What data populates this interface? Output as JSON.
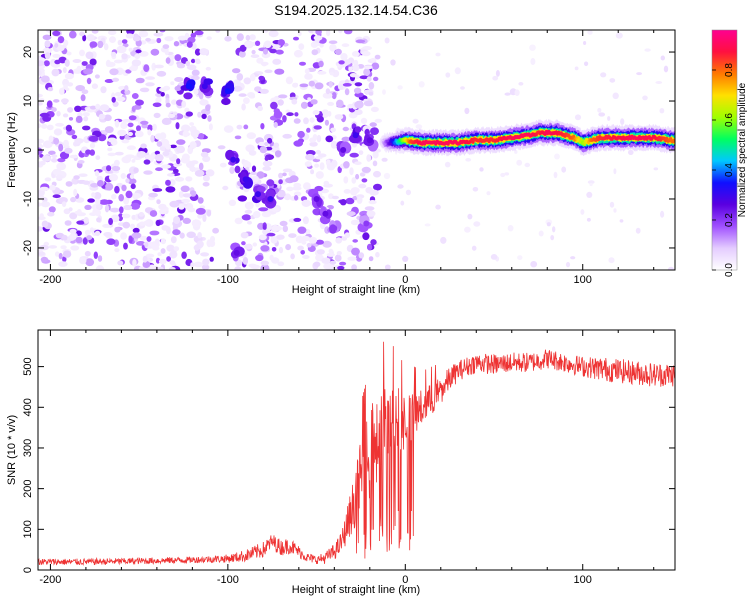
{
  "figure": {
    "title": "S194.2025.132.14.54.C36"
  },
  "chart_data": [
    {
      "type": "heatmap",
      "xlabel": "Height of straight line (km)",
      "ylabel": "Frequency (Hz)",
      "xlim": [
        -207,
        152
      ],
      "ylim": [
        -24.5,
        24.5
      ],
      "xticks": [
        -200,
        -100,
        0,
        100
      ],
      "yticks": [
        -20,
        -10,
        0,
        10,
        20
      ],
      "colorbar": {
        "label": "Normalized spectral amplitude",
        "ticks": [
          0.0,
          0.2,
          0.4,
          0.6,
          0.8
        ],
        "range": [
          0,
          0.96
        ],
        "colors": [
          "#ffffff",
          "#e4ccff",
          "#a050ff",
          "#5a00e0",
          "#1010ff",
          "#00c8ff",
          "#00ff60",
          "#a0ff00",
          "#ffe000",
          "#ff7800",
          "#ff1040",
          "#ff0090"
        ]
      },
      "ridge_x": [
        -10,
        0,
        10,
        20,
        30,
        40,
        50,
        60,
        70,
        75,
        80,
        85,
        90,
        95,
        100,
        105,
        110,
        120,
        130,
        140,
        150
      ],
      "ridge_y": [
        1.5,
        2,
        1.5,
        1.5,
        1.5,
        2,
        2,
        2.5,
        3,
        3.5,
        3.5,
        3.5,
        3,
        2.5,
        1.5,
        2,
        2.5,
        2.5,
        2.5,
        2.5,
        2
      ],
      "ridge_amplitude": [
        0.75,
        0.8,
        0.9,
        0.92,
        0.9,
        0.85,
        0.85,
        0.9,
        0.92,
        0.85,
        0.9,
        0.88,
        0.85,
        0.8,
        0.6,
        0.8,
        0.85,
        0.88,
        0.9,
        0.88,
        0.8
      ],
      "features": [
        {
          "x": -122,
          "y": 13,
          "amp": 0.35
        },
        {
          "x": -113,
          "y": 13,
          "amp": 0.3
        },
        {
          "x": -100,
          "y": 12,
          "amp": 0.35
        },
        {
          "x": -97,
          "y": -2,
          "amp": 0.3
        },
        {
          "x": -95,
          "y": -21,
          "amp": 0.25
        },
        {
          "x": -90,
          "y": -6,
          "amp": 0.3
        },
        {
          "x": -83,
          "y": -9,
          "amp": 0.3
        },
        {
          "x": -76,
          "y": -10,
          "amp": 0.3
        },
        {
          "x": -50,
          "y": -10,
          "amp": 0.25
        },
        {
          "x": -45,
          "y": -13,
          "amp": 0.25
        },
        {
          "x": -40,
          "y": -16,
          "amp": 0.2
        },
        {
          "x": -35,
          "y": 0,
          "amp": 0.25
        },
        {
          "x": -28,
          "y": 3,
          "amp": 0.3
        },
        {
          "x": -22,
          "y": -15,
          "amp": 0.2
        },
        {
          "x": -20,
          "y": 2,
          "amp": 0.25
        }
      ]
    },
    {
      "type": "line",
      "xlabel": "Height of straight line (km)",
      "ylabel": "SNR (10 * v/v)",
      "xlim": [
        -207,
        152
      ],
      "ylim": [
        0,
        590
      ],
      "xticks": [
        -200,
        -100,
        0,
        100
      ],
      "yticks": [
        0,
        100,
        200,
        300,
        400,
        500
      ],
      "series": [
        {
          "color": "#ee3333",
          "x": [
            -207,
            -180,
            -150,
            -120,
            -100,
            -90,
            -80,
            -75,
            -70,
            -65,
            -60,
            -55,
            -50,
            -45,
            -40,
            -37,
            -35,
            -30,
            -25,
            -20,
            -18,
            -15,
            -10,
            -5,
            0,
            5,
            10,
            15,
            20,
            25,
            30,
            35,
            40,
            50,
            60,
            70,
            80,
            90,
            100,
            110,
            120,
            130,
            140,
            152
          ],
          "y": [
            20,
            20,
            22,
            25,
            28,
            35,
            50,
            70,
            55,
            60,
            45,
            30,
            25,
            30,
            45,
            60,
            80,
            150,
            230,
            280,
            300,
            330,
            370,
            380,
            360,
            380,
            400,
            420,
            440,
            470,
            490,
            500,
            510,
            505,
            510,
            510,
            520,
            510,
            500,
            495,
            490,
            485,
            480,
            480
          ],
          "noise": [
            8,
            8,
            8,
            8,
            10,
            15,
            20,
            20,
            20,
            20,
            15,
            12,
            10,
            15,
            20,
            25,
            30,
            60,
            90,
            110,
            120,
            110,
            100,
            80,
            70,
            60,
            45,
            40,
            35,
            30,
            25,
            25,
            25,
            25,
            25,
            25,
            25,
            25,
            25,
            30,
            30,
            30,
            30,
            30
          ]
        }
      ]
    }
  ]
}
